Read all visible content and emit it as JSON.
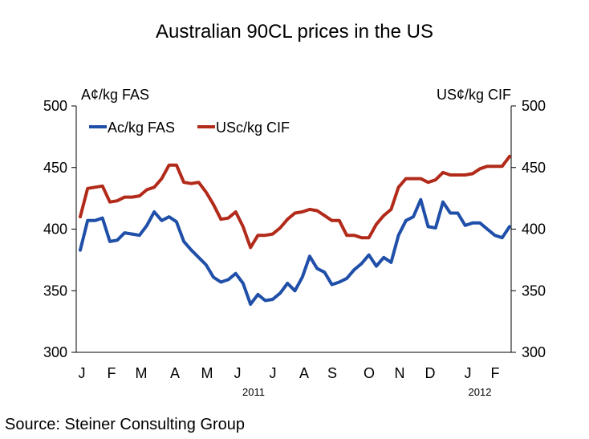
{
  "chart_data": {
    "type": "line",
    "title": "Australian 90CL prices in the US",
    "ylabel_left": "A¢/kg FAS",
    "ylabel_right": "US¢/kg CIF",
    "ylim": [
      300,
      500
    ],
    "yticks": [
      300,
      350,
      400,
      450,
      500
    ],
    "months": [
      "J",
      "F",
      "M",
      "A",
      "M",
      "J",
      "J",
      "A",
      "S",
      "O",
      "N",
      "D",
      "J",
      "F"
    ],
    "year_labels": [
      "2011",
      "2012"
    ],
    "legend_placement": "top-left",
    "grid": false,
    "series": [
      {
        "name": "Ac/kg FAS",
        "color": "#1f4fa8",
        "values": [
          383,
          407,
          407,
          409,
          390,
          391,
          397,
          396,
          395,
          403,
          414,
          407,
          410,
          406,
          390,
          383,
          377,
          371,
          361,
          357,
          359,
          364,
          356,
          339,
          347,
          342,
          343,
          348,
          356,
          350,
          361,
          378,
          368,
          365,
          355,
          357,
          360,
          367,
          372,
          379,
          370,
          377,
          373,
          395,
          407,
          410,
          424,
          402,
          401,
          422,
          413,
          413,
          403,
          405,
          405,
          400,
          395,
          393,
          402
        ]
      },
      {
        "name": "USc/kg CIF",
        "color": "#b22a1a",
        "values": [
          410,
          433,
          434,
          435,
          422,
          423,
          426,
          426,
          427,
          432,
          434,
          441,
          452,
          452,
          438,
          437,
          438,
          430,
          420,
          408,
          409,
          414,
          402,
          385,
          395,
          395,
          396,
          401,
          408,
          413,
          414,
          416,
          415,
          411,
          407,
          407,
          395,
          395,
          393,
          393,
          404,
          411,
          416,
          434,
          441,
          441,
          441,
          438,
          440,
          446,
          444,
          444,
          444,
          445,
          449,
          451,
          451,
          451,
          459
        ]
      }
    ]
  },
  "source": "Source: Steiner Consulting Group"
}
